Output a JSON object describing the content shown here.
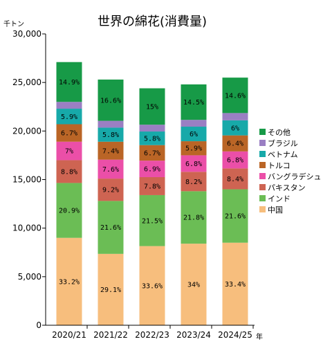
{
  "chart_data": {
    "type": "bar",
    "stacked": true,
    "title": "世界の綿花(消費量)",
    "y_unit": "千トン",
    "x_unit": "年",
    "ylim": [
      0,
      30000
    ],
    "yticks": [
      "0",
      "5,000",
      "10,000",
      "15,000",
      "20,000",
      "25,000",
      "30,000"
    ],
    "ytick_values": [
      0,
      5000,
      10000,
      15000,
      20000,
      25000,
      30000
    ],
    "grid": false,
    "legend_position": "right",
    "categories": [
      "2020/21",
      "2021/22",
      "2022/23",
      "2023/24",
      "2024/25"
    ],
    "series": [
      {
        "name": "中国",
        "color": "#F7BE7D",
        "values": [
          9000,
          7350,
          8150,
          8400,
          8500
        ],
        "labels": [
          "33.2%",
          "29.1%",
          "33.6%",
          "34%",
          "33.4%"
        ]
      },
      {
        "name": "インド",
        "color": "#6BBD55",
        "values": [
          5650,
          5450,
          5250,
          5400,
          5500
        ],
        "labels": [
          "20.9%",
          "21.6%",
          "21.5%",
          "21.8%",
          "21.6%"
        ]
      },
      {
        "name": "パキスタン",
        "color": "#CE6452",
        "values": [
          2350,
          2300,
          1850,
          2000,
          2150
        ],
        "labels": [
          "8.8%",
          "9.2%",
          "7.8%",
          "8.2%",
          "8.4%"
        ]
      },
      {
        "name": "バングラデシュ",
        "color": "#EB4FA8",
        "values": [
          1900,
          1950,
          1700,
          1700,
          1750
        ],
        "labels": [
          "7%",
          "7.6%",
          "6.9%",
          "6.8%",
          "6.8%"
        ]
      },
      {
        "name": "トルコ",
        "color": "#BA6526",
        "values": [
          1800,
          1850,
          1600,
          1450,
          1650
        ],
        "labels": [
          "6.7%",
          "7.4%",
          "6.7%",
          "5.9%",
          "6.4%"
        ]
      },
      {
        "name": "ベトナム",
        "color": "#17A9A9",
        "values": [
          1600,
          1450,
          1400,
          1500,
          1550
        ],
        "labels": [
          "5.9%",
          "5.8%",
          "5.8%",
          "6%",
          "6%"
        ]
      },
      {
        "name": "ブラジル",
        "color": "#9A7FC3",
        "values": [
          700,
          700,
          700,
          700,
          750
        ],
        "labels": [
          "",
          "",
          "",
          "",
          ""
        ]
      },
      {
        "name": "その他",
        "color": "#179A47",
        "values": [
          4100,
          4250,
          3750,
          3650,
          3650
        ],
        "labels": [
          "14.9%",
          "16.6%",
          "15%",
          "14.5%",
          "14.6%"
        ]
      }
    ]
  }
}
